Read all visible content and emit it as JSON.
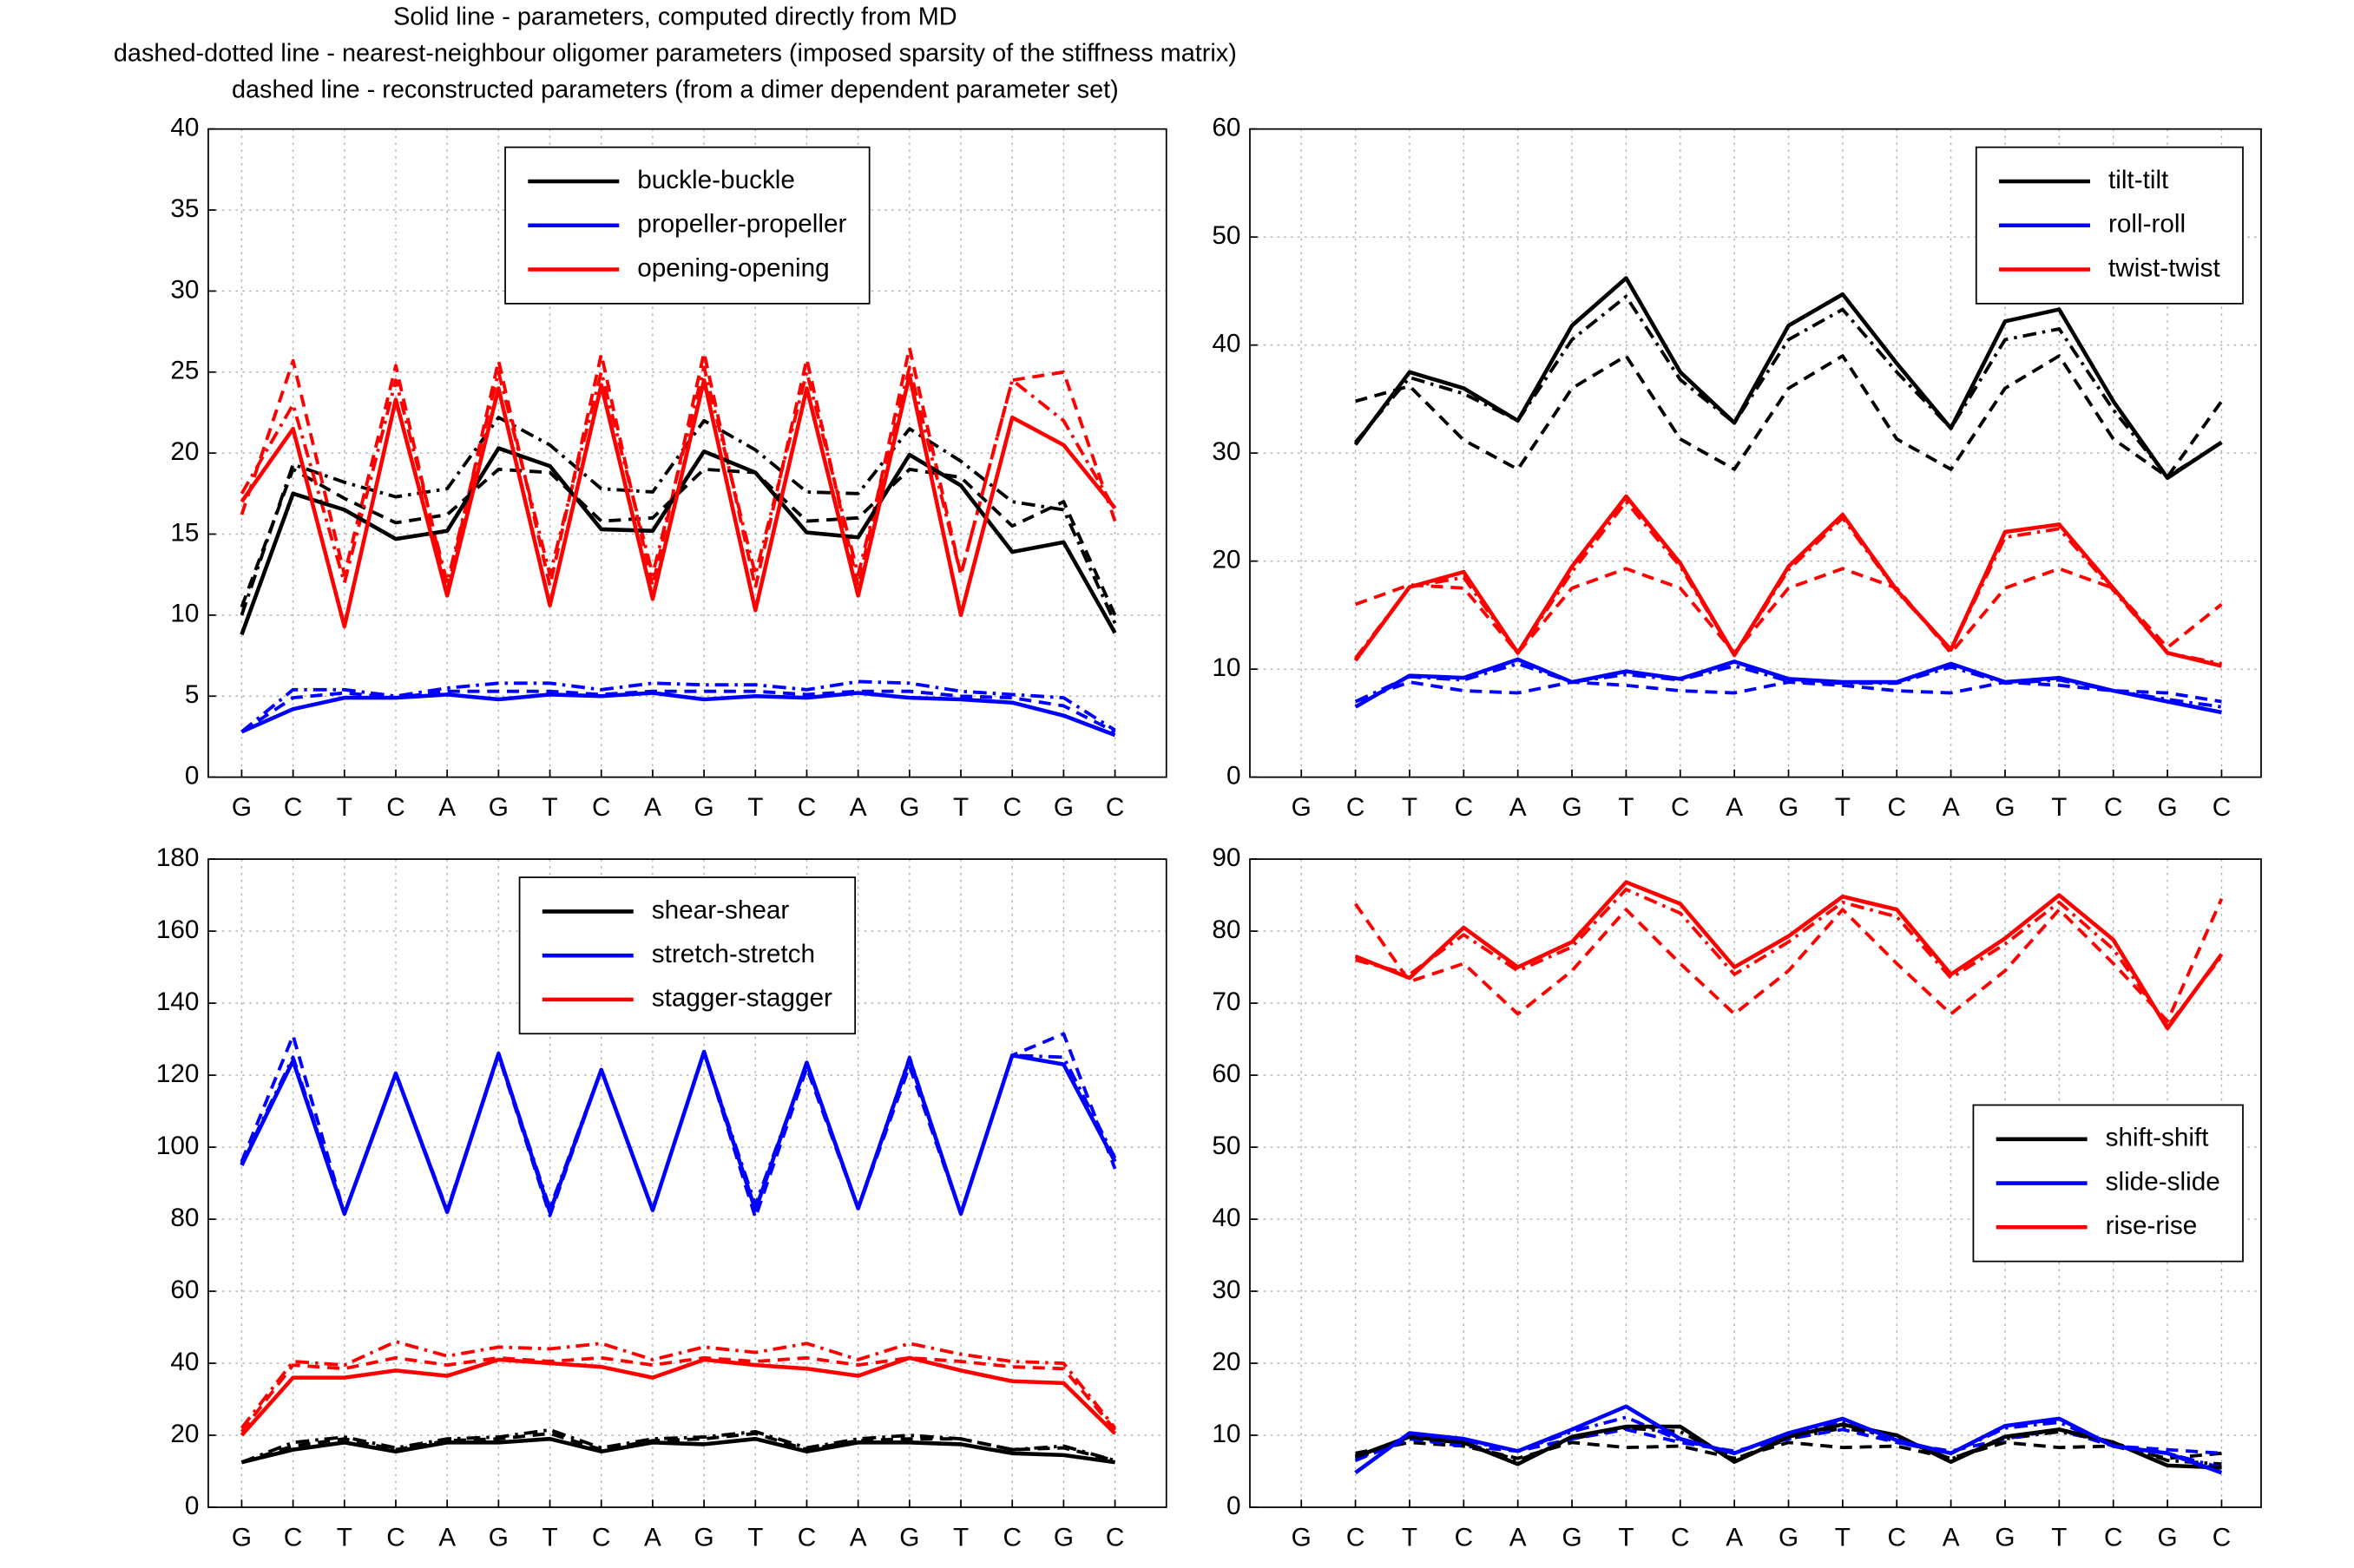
{
  "chart_data": [
    {
      "type": "line",
      "title": [
        "Solid line - parameters, computed directly from MD",
        "dashed-dotted line - nearest-neighbour oligomer parameters (imposed sparsity of the stiffness matrix)",
        "dashed line - reconstructed parameters (from a dimer dependent parameter set)"
      ],
      "categories": [
        "G",
        "C",
        "T",
        "C",
        "A",
        "G",
        "T",
        "C",
        "A",
        "G",
        "T",
        "C",
        "A",
        "G",
        "T",
        "C",
        "G",
        "C"
      ],
      "ylim": [
        0,
        40
      ],
      "yticks": [
        0,
        5,
        10,
        15,
        20,
        25,
        30,
        35,
        40
      ],
      "grid": true,
      "legend": "upper center",
      "series": [
        {
          "name": "buckle-buckle",
          "color": "#000000",
          "style": "solid",
          "values": [
            8.8,
            17.5,
            16.5,
            14.7,
            15.2,
            20.3,
            19.2,
            15.3,
            15.2,
            20.1,
            18.8,
            15.1,
            14.8,
            19.9,
            18.0,
            13.9,
            14.5,
            8.9
          ]
        },
        {
          "name": "propeller-propeller",
          "color": "#0000ff",
          "style": "solid",
          "values": [
            2.8,
            4.2,
            4.9,
            4.9,
            5.1,
            4.8,
            5.1,
            5.0,
            5.2,
            4.8,
            5.0,
            4.9,
            5.2,
            4.9,
            4.8,
            4.6,
            3.8,
            2.6
          ]
        },
        {
          "name": "opening-opening",
          "color": "#ff0000",
          "style": "solid",
          "values": [
            17,
            21.5,
            9.3,
            23.3,
            11.2,
            24,
            10.6,
            24.2,
            11.0,
            24.5,
            10.3,
            24,
            11.2,
            24.8,
            10.0,
            22.2,
            20.5,
            16.6
          ]
        },
        {
          "color": "#000000",
          "style": "dashdot",
          "values": [
            10,
            19.3,
            18.2,
            17.3,
            17.8,
            22.2,
            20.5,
            17.8,
            17.6,
            22,
            20.2,
            17.6,
            17.5,
            21.5,
            19.5,
            17,
            16.5,
            9.5
          ]
        },
        {
          "color": "#000000",
          "style": "dashed",
          "values": [
            10.5,
            19.0,
            17.2,
            15.7,
            16.2,
            19.0,
            18.8,
            15.8,
            16.0,
            19.0,
            18.8,
            15.8,
            16.0,
            19.0,
            18.5,
            15.5,
            17.0,
            10.0
          ]
        },
        {
          "color": "#0000ff",
          "style": "dashdot",
          "values": [
            2.8,
            5.4,
            5.4,
            5.0,
            5.5,
            5.8,
            5.8,
            5.4,
            5.8,
            5.7,
            5.7,
            5.4,
            5.9,
            5.8,
            5.3,
            5.1,
            4.9,
            2.9
          ]
        },
        {
          "color": "#0000ff",
          "style": "dashed",
          "values": [
            2.8,
            4.9,
            5.2,
            4.9,
            5.3,
            5.3,
            5.3,
            5.1,
            5.3,
            5.3,
            5.3,
            5.1,
            5.3,
            5.3,
            5.0,
            4.9,
            4.4,
            2.8
          ]
        },
        {
          "color": "#ff0000",
          "style": "dashdot",
          "values": [
            17.5,
            23,
            12,
            24.5,
            12,
            25,
            12.5,
            25,
            12.5,
            25.3,
            12.5,
            25,
            12.5,
            25.3,
            12.5,
            24.5,
            22,
            16.5
          ]
        },
        {
          "color": "#ff0000",
          "style": "dashed",
          "values": [
            16.2,
            25.7,
            12.5,
            25.4,
            11.5,
            25.7,
            11.8,
            26.1,
            11.8,
            26.2,
            11.7,
            25.8,
            11.8,
            26.5,
            12.5,
            24.5,
            25.0,
            15.8
          ]
        }
      ]
    },
    {
      "type": "line",
      "categories": [
        "G",
        "C",
        "T",
        "C",
        "A",
        "G",
        "T",
        "C",
        "A",
        "G",
        "T",
        "C",
        "A",
        "G",
        "T",
        "C",
        "G",
        "C"
      ],
      "ylim": [
        0,
        60
      ],
      "yticks": [
        0,
        10,
        20,
        30,
        40,
        50,
        60
      ],
      "grid": true,
      "legend": "upper right",
      "series": [
        {
          "name": "tilt-tilt",
          "color": "#000000",
          "style": "solid",
          "values": [
            null,
            30.8,
            37.5,
            36,
            33,
            41.8,
            46.2,
            37.5,
            32.8,
            41.8,
            44.7,
            38.3,
            32.3,
            42.2,
            43.3,
            34.8,
            27.7,
            31
          ]
        },
        {
          "name": "roll-roll",
          "color": "#0000ff",
          "style": "solid",
          "values": [
            null,
            6.5,
            9.4,
            9.2,
            10.9,
            8.8,
            9.8,
            9.1,
            10.7,
            9.1,
            8.8,
            8.8,
            10.5,
            8.8,
            9.2,
            8.0,
            7.0,
            6.0
          ]
        },
        {
          "name": "twist-twist",
          "color": "#ff0000",
          "style": "solid",
          "values": [
            null,
            10.8,
            17.6,
            19,
            11.5,
            19.5,
            26,
            19.8,
            11.3,
            19.5,
            24.3,
            17.3,
            11.8,
            22.7,
            23.4,
            17.5,
            11.5,
            10.3
          ]
        },
        {
          "color": "#000000",
          "style": "dashdot",
          "values": [
            null,
            31,
            37,
            35.5,
            33,
            40.5,
            44.5,
            36.8,
            32.8,
            40.5,
            43.3,
            37.5,
            32.3,
            40.5,
            41.5,
            34,
            27.8,
            31
          ]
        },
        {
          "color": "#000000",
          "style": "dashed",
          "values": [
            null,
            34.8,
            36.2,
            31.2,
            28.5,
            36,
            39,
            31.3,
            28.5,
            36,
            39,
            31.3,
            28.5,
            36,
            39,
            31.3,
            27.8,
            34.8
          ]
        },
        {
          "color": "#0000ff",
          "style": "dashdot",
          "values": [
            null,
            7.0,
            9.3,
            9.0,
            10.5,
            8.8,
            9.5,
            9.0,
            10.3,
            8.9,
            8.7,
            8.7,
            10.2,
            8.7,
            9.0,
            8.0,
            7.2,
            6.5
          ]
        },
        {
          "color": "#0000ff",
          "style": "dashed",
          "values": [
            null,
            7.0,
            8.8,
            8.0,
            7.8,
            8.8,
            8.5,
            8.0,
            7.8,
            8.8,
            8.5,
            8.0,
            7.8,
            8.8,
            8.5,
            8.0,
            7.8,
            7.0
          ]
        },
        {
          "color": "#ff0000",
          "style": "dashdot",
          "values": [
            null,
            11,
            17.6,
            18.5,
            11.5,
            19,
            25.5,
            19.5,
            11.3,
            19.2,
            24,
            17.2,
            11.8,
            22.2,
            23,
            17.3,
            11.5,
            10.5
          ]
        },
        {
          "color": "#ff0000",
          "style": "dashed",
          "values": [
            null,
            16,
            17.8,
            17.5,
            11.5,
            17.5,
            19.3,
            17.5,
            11.5,
            17.5,
            19.3,
            17.5,
            11.5,
            17.5,
            19.3,
            17.5,
            12.0,
            16.0
          ]
        }
      ]
    },
    {
      "type": "line",
      "categories": [
        "G",
        "C",
        "T",
        "C",
        "A",
        "G",
        "T",
        "C",
        "A",
        "G",
        "T",
        "C",
        "A",
        "G",
        "T",
        "C",
        "G",
        "C"
      ],
      "ylim": [
        0,
        180
      ],
      "yticks": [
        0,
        20,
        40,
        60,
        80,
        100,
        120,
        140,
        160,
        180
      ],
      "grid": true,
      "legend": "upper center",
      "series": [
        {
          "name": "shear-shear",
          "color": "#000000",
          "style": "solid",
          "values": [
            12.5,
            16,
            18,
            15.5,
            18,
            18,
            19,
            15.5,
            18,
            17.5,
            19,
            15.5,
            18,
            18,
            17.5,
            15,
            14.5,
            12.5
          ]
        },
        {
          "name": "stretch-stretch",
          "color": "#0000ff",
          "style": "solid",
          "values": [
            95,
            124,
            81.5,
            120.5,
            82,
            126,
            82,
            121.5,
            82.5,
            126.5,
            82.5,
            123.5,
            83,
            124.5,
            81.5,
            125.5,
            123,
            96
          ]
        },
        {
          "name": "stagger-stagger",
          "color": "#ff0000",
          "style": "solid",
          "values": [
            20,
            36,
            36,
            38,
            36.5,
            41,
            40,
            39,
            36,
            41,
            39.5,
            38.5,
            36.5,
            41.5,
            38,
            35,
            34.5,
            20.5
          ]
        },
        {
          "color": "#000000",
          "style": "dashdot",
          "values": [
            12.5,
            18,
            19.5,
            16.5,
            19,
            19.5,
            21.5,
            16.5,
            19,
            19.5,
            21,
            16.5,
            19,
            20,
            19,
            16,
            17,
            13
          ]
        },
        {
          "color": "#000000",
          "style": "dashed",
          "values": [
            12.5,
            17,
            19,
            16,
            18.5,
            19,
            20.5,
            16,
            18.5,
            19,
            20.5,
            16,
            18.5,
            19,
            19,
            16,
            16.5,
            13
          ]
        },
        {
          "color": "#0000ff",
          "style": "dashdot",
          "values": [
            95.5,
            125,
            81.5,
            120.5,
            82,
            126,
            83,
            121.5,
            82.5,
            126.5,
            84,
            123,
            83,
            125,
            81.5,
            125.5,
            125,
            97
          ]
        },
        {
          "color": "#0000ff",
          "style": "dashed",
          "values": [
            96,
            131,
            81.5,
            120.5,
            82.5,
            125.5,
            81,
            121.5,
            82.5,
            126.5,
            80.5,
            122,
            83,
            122.5,
            81.5,
            125.5,
            131.5,
            94
          ]
        },
        {
          "color": "#ff0000",
          "style": "dashdot",
          "values": [
            22,
            40.5,
            39.5,
            46,
            42,
            44.5,
            44,
            45.5,
            41,
            44.5,
            43,
            45.5,
            41,
            45.5,
            42.5,
            40.5,
            40,
            22
          ]
        },
        {
          "color": "#ff0000",
          "style": "dashed",
          "values": [
            21,
            39.5,
            38.5,
            41.5,
            39.5,
            41.5,
            40.5,
            41.5,
            39.5,
            41.5,
            40.5,
            41.5,
            39.5,
            41.5,
            40.5,
            39,
            38.5,
            21.5
          ]
        }
      ]
    },
    {
      "type": "line",
      "categories": [
        "G",
        "C",
        "T",
        "C",
        "A",
        "G",
        "T",
        "C",
        "A",
        "G",
        "T",
        "C",
        "A",
        "G",
        "T",
        "C",
        "G",
        "C"
      ],
      "ylim": [
        0,
        90
      ],
      "yticks": [
        0,
        10,
        20,
        30,
        40,
        50,
        60,
        70,
        80,
        90
      ],
      "grid": true,
      "legend": "center right",
      "series": [
        {
          "name": "shift-shift",
          "color": "#000000",
          "style": "solid",
          "values": [
            null,
            7.0,
            9.8,
            9.0,
            6.0,
            9.8,
            11.2,
            11.2,
            6.3,
            9.8,
            11.5,
            10.0,
            6.3,
            9.8,
            10.8,
            9.0,
            5.8,
            5.5
          ]
        },
        {
          "name": "slide-slide",
          "color": "#0000ff",
          "style": "solid",
          "values": [
            null,
            4.8,
            10.3,
            9.5,
            7.8,
            10.8,
            14.0,
            9.5,
            7.5,
            10.3,
            12.3,
            9.3,
            7.5,
            11.3,
            12.3,
            8.5,
            7.5,
            4.8
          ]
        },
        {
          "name": "rise-rise",
          "color": "#ff0000",
          "style": "solid",
          "values": [
            null,
            76.5,
            73.5,
            80.5,
            75,
            78.5,
            86.8,
            83.8,
            75,
            79.3,
            84.8,
            83,
            74,
            79,
            85,
            78.8,
            66.5,
            76.8
          ]
        },
        {
          "color": "#000000",
          "style": "dashdot",
          "values": [
            null,
            6.8,
            9.5,
            9.0,
            6.5,
            9.5,
            11.0,
            10.5,
            6.7,
            9.5,
            11.0,
            9.8,
            6.7,
            9.5,
            10.5,
            9.0,
            6.5,
            6.0
          ]
        },
        {
          "color": "#000000",
          "style": "dashed",
          "values": [
            null,
            7.5,
            9.0,
            8.5,
            6.8,
            9.0,
            8.3,
            8.5,
            6.8,
            9.0,
            8.3,
            8.5,
            6.8,
            9.0,
            8.3,
            8.5,
            6.8,
            7.5
          ]
        },
        {
          "color": "#0000ff",
          "style": "dashdot",
          "values": [
            null,
            6.5,
            10.0,
            9.3,
            7.8,
            10.5,
            12.5,
            9.3,
            7.6,
            10.0,
            12.0,
            9.0,
            7.5,
            11.0,
            11.8,
            8.5,
            7.5,
            5.5
          ]
        },
        {
          "color": "#0000ff",
          "style": "dashed",
          "values": [
            null,
            6.5,
            9.5,
            8.5,
            7.8,
            9.5,
            10.8,
            9.0,
            7.8,
            9.5,
            10.8,
            9.0,
            7.8,
            9.5,
            10.8,
            8.5,
            8.0,
            7.5
          ]
        },
        {
          "color": "#ff0000",
          "style": "dashdot",
          "values": [
            null,
            76,
            74,
            79.5,
            74.5,
            77.8,
            85.8,
            82.5,
            74,
            78.5,
            84,
            82,
            73.5,
            78.2,
            84,
            77.5,
            66.8,
            76.5
          ]
        },
        {
          "color": "#ff0000",
          "style": "dashed",
          "values": [
            null,
            83.8,
            73,
            75.5,
            68.5,
            74.5,
            83,
            75.5,
            68.5,
            74.5,
            83,
            75.5,
            68.5,
            74.5,
            83,
            75.5,
            67.5,
            84.5
          ]
        }
      ]
    }
  ]
}
